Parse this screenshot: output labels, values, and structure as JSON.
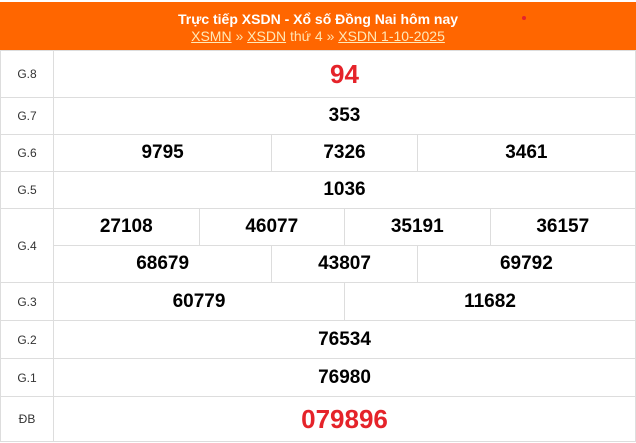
{
  "header": {
    "title": "Trực tiếp XSDN - Xổ số Đồng Nai hôm nay",
    "link1": "XSMN",
    "sep1": " » ",
    "link2": "XSDN",
    "day": " thứ 4 » ",
    "link3": "XSDN 1-10-2025"
  },
  "colors": {
    "header_bg": "#ff6600",
    "highlight": "#e5232a"
  },
  "prizes": [
    {
      "label": "G.8",
      "numbers": [
        "94"
      ]
    },
    {
      "label": "G.7",
      "numbers": [
        "353"
      ]
    },
    {
      "label": "G.6",
      "numbers": [
        "9795",
        "7326",
        "3461"
      ]
    },
    {
      "label": "G.5",
      "numbers": [
        "1036"
      ]
    },
    {
      "label": "G.4",
      "numbers": [
        "27108",
        "46077",
        "35191",
        "36157",
        "68679",
        "43807",
        "69792"
      ]
    },
    {
      "label": "G.3",
      "numbers": [
        "60779",
        "11682"
      ]
    },
    {
      "label": "G.2",
      "numbers": [
        "76534"
      ]
    },
    {
      "label": "G.1",
      "numbers": [
        "76980"
      ]
    },
    {
      "label": "ĐB",
      "numbers": [
        "079896"
      ]
    }
  ]
}
